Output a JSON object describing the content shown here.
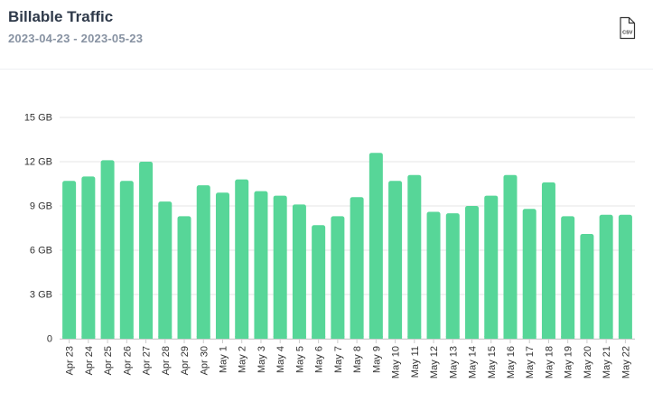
{
  "header": {
    "title": "Billable Traffic",
    "date_range": "2023-04-23 - 2023-05-23",
    "csv_label": "CSV",
    "csv_icon": "csv-file-icon"
  },
  "colors": {
    "bar": "#57d698",
    "grid": "#e6e6e6",
    "axis_text": "#333333",
    "title": "#2f3a4a",
    "subtitle": "#8792a2"
  },
  "chart_data": {
    "type": "bar",
    "title": "Billable Traffic",
    "xlabel": "",
    "ylabel": "",
    "unit": "GB",
    "ylim": [
      0,
      15
    ],
    "yticks": [
      {
        "value": 0,
        "label": "0"
      },
      {
        "value": 3,
        "label": "3 GB"
      },
      {
        "value": 6,
        "label": "6 GB"
      },
      {
        "value": 9,
        "label": "9 GB"
      },
      {
        "value": 12,
        "label": "12 GB"
      },
      {
        "value": 15,
        "label": "15 GB"
      }
    ],
    "grid": true,
    "categories": [
      "Apr 23",
      "Apr 24",
      "Apr 25",
      "Apr 26",
      "Apr 27",
      "Apr 28",
      "Apr 29",
      "Apr 30",
      "May 1",
      "May 2",
      "May 3",
      "May 4",
      "May 5",
      "May 6",
      "May 7",
      "May 8",
      "May 9",
      "May 10",
      "May 11",
      "May 12",
      "May 13",
      "May 14",
      "May 15",
      "May 16",
      "May 17",
      "May 18",
      "May 19",
      "May 20",
      "May 21",
      "May 22"
    ],
    "values": [
      10.7,
      11.0,
      12.1,
      10.7,
      12.0,
      9.3,
      8.3,
      10.4,
      9.9,
      10.8,
      10.0,
      9.7,
      9.1,
      7.7,
      8.3,
      9.6,
      12.6,
      10.7,
      11.1,
      8.6,
      8.5,
      9.0,
      9.7,
      11.1,
      8.8,
      10.6,
      8.3,
      7.1,
      8.4,
      8.4
    ]
  }
}
